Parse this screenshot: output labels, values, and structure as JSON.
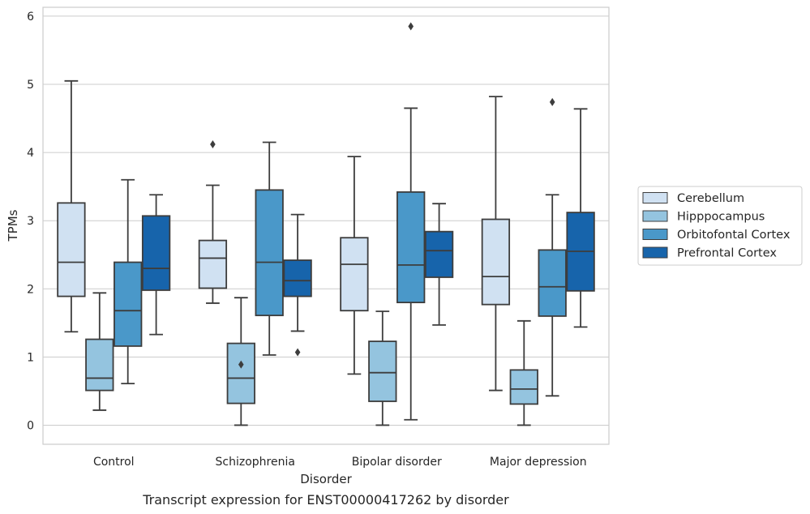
{
  "chart_data": {
    "type": "box",
    "title": "",
    "caption": "Transcript expression for ENST00000417262 by disorder",
    "xlabel": "Disorder",
    "ylabel": "TPMs",
    "ylim": [
      -0.28,
      6.13
    ],
    "yticks": [
      "0",
      "1",
      "2",
      "3",
      "4",
      "5",
      "6"
    ],
    "grid": "horizontal",
    "legend_position": "right",
    "categories": [
      "Control",
      "Schizophrenia",
      "Bipolar disorder",
      "Major depression"
    ],
    "series": [
      {
        "name": "Cerebellum",
        "color": "#d0e1f2",
        "boxes": [
          {
            "whisker_low": 1.37,
            "q1": 1.89,
            "median": 2.39,
            "q3": 3.26,
            "whisker_high": 5.05,
            "outliers": []
          },
          {
            "whisker_low": 1.79,
            "q1": 2.01,
            "median": 2.45,
            "q3": 2.71,
            "whisker_high": 3.52,
            "outliers": [
              4.12
            ]
          },
          {
            "whisker_low": 0.75,
            "q1": 1.68,
            "median": 2.36,
            "q3": 2.75,
            "whisker_high": 3.94,
            "outliers": []
          },
          {
            "whisker_low": 0.51,
            "q1": 1.77,
            "median": 2.18,
            "q3": 3.02,
            "whisker_high": 4.82,
            "outliers": []
          }
        ]
      },
      {
        "name": "Hipppocampus",
        "color": "#94c4df",
        "boxes": [
          {
            "whisker_low": 0.22,
            "q1": 0.51,
            "median": 0.69,
            "q3": 1.26,
            "whisker_high": 1.94,
            "outliers": []
          },
          {
            "whisker_low": 0.0,
            "q1": 0.32,
            "median": 0.69,
            "q3": 1.2,
            "whisker_high": 1.87,
            "outliers": [
              0.89
            ]
          },
          {
            "whisker_low": 0.0,
            "q1": 0.35,
            "median": 0.77,
            "q3": 1.23,
            "whisker_high": 1.67,
            "outliers": []
          },
          {
            "whisker_low": 0.0,
            "q1": 0.31,
            "median": 0.53,
            "q3": 0.81,
            "whisker_high": 1.53,
            "outliers": []
          }
        ]
      },
      {
        "name": "Orbitofontal Cortex",
        "color": "#4a98c9",
        "boxes": [
          {
            "whisker_low": 0.61,
            "q1": 1.16,
            "median": 1.68,
            "q3": 2.39,
            "whisker_high": 3.6,
            "outliers": []
          },
          {
            "whisker_low": 1.03,
            "q1": 1.61,
            "median": 2.39,
            "q3": 3.45,
            "whisker_high": 4.15,
            "outliers": []
          },
          {
            "whisker_low": 0.08,
            "q1": 1.8,
            "median": 2.35,
            "q3": 3.42,
            "whisker_high": 4.65,
            "outliers": [
              5.85
            ]
          },
          {
            "whisker_low": 0.43,
            "q1": 1.6,
            "median": 2.03,
            "q3": 2.57,
            "whisker_high": 3.38,
            "outliers": [
              4.74
            ]
          }
        ]
      },
      {
        "name": "Prefrontal Cortex",
        "color": "#1764ab",
        "boxes": [
          {
            "whisker_low": 1.33,
            "q1": 1.98,
            "median": 2.3,
            "q3": 3.07,
            "whisker_high": 3.38,
            "outliers": []
          },
          {
            "whisker_low": 1.38,
            "q1": 1.89,
            "median": 2.12,
            "q3": 2.42,
            "whisker_high": 3.09,
            "outliers": [
              1.07
            ]
          },
          {
            "whisker_low": 1.47,
            "q1": 2.17,
            "median": 2.56,
            "q3": 2.84,
            "whisker_high": 3.25,
            "outliers": []
          },
          {
            "whisker_low": 1.44,
            "q1": 1.97,
            "median": 2.55,
            "q3": 3.12,
            "whisker_high": 4.64,
            "outliers": []
          }
        ]
      }
    ]
  }
}
